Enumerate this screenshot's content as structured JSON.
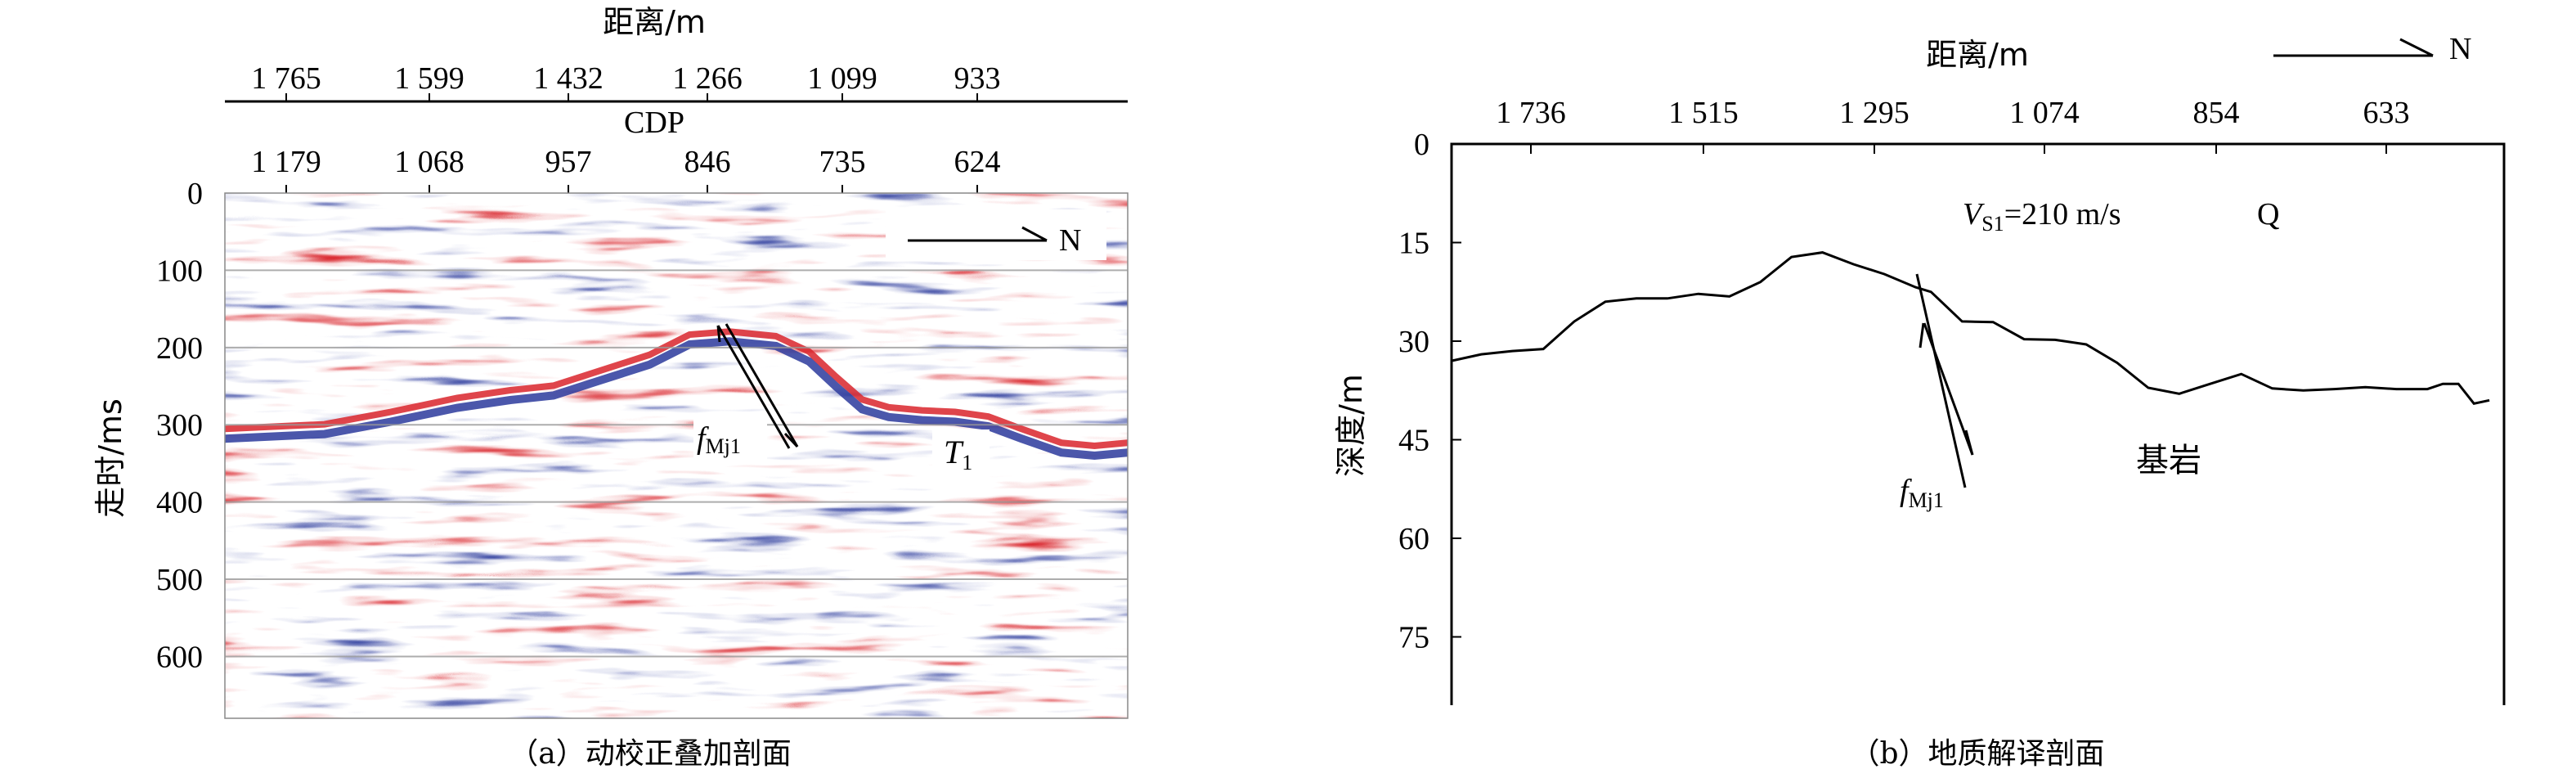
{
  "chart_data": [
    {
      "type": "heatmap",
      "panel": "a",
      "caption": "（a）动校正叠加剖面",
      "top_axis": {
        "label": "距离/m",
        "ticks": [
          "1 765",
          "1 599",
          "1 432",
          "1 266",
          "1 099",
          "933"
        ]
      },
      "second_axis": {
        "label": "CDP",
        "ticks": [
          "1 179",
          "1 068",
          "957",
          "846",
          "735",
          "624"
        ]
      },
      "y_axis": {
        "label": "走时/ms",
        "ticks": [
          "0",
          "100",
          "200",
          "300",
          "400",
          "500",
          "600"
        ],
        "range": [
          0,
          680
        ]
      },
      "north_label": "N",
      "annotations": {
        "fault_main": "f",
        "fault_sub": "Mj1",
        "horizon_main": "T",
        "horizon_sub": "1"
      },
      "colors": {
        "positive": "#d9242b",
        "negative": "#2b3a9c",
        "background": "#ffffff"
      },
      "horizon_t1_ms": [
        [
          0,
          318
        ],
        [
          150,
          312
        ],
        [
          250,
          296
        ],
        [
          350,
          278
        ],
        [
          430,
          268
        ],
        [
          495,
          262
        ],
        [
          560,
          244
        ],
        [
          640,
          222
        ],
        [
          700,
          196
        ],
        [
          760,
          192
        ],
        [
          830,
          198
        ],
        [
          880,
          218
        ],
        [
          920,
          250
        ],
        [
          960,
          280
        ],
        [
          1000,
          290
        ],
        [
          1050,
          294
        ],
        [
          1100,
          296
        ],
        [
          1150,
          302
        ],
        [
          1200,
          318
        ],
        [
          1260,
          336
        ],
        [
          1310,
          340
        ],
        [
          1360,
          336
        ]
      ]
    },
    {
      "type": "line",
      "panel": "b",
      "caption": "（b）地质解译剖面",
      "top_axis": {
        "label": "距离/m",
        "ticks": [
          "1 736",
          "1 515",
          "1 295",
          "1 074",
          "854",
          "633"
        ]
      },
      "y_axis": {
        "label": "深度/m",
        "ticks": [
          "0",
          "15",
          "30",
          "45",
          "60",
          "75"
        ],
        "range": [
          0,
          83
        ]
      },
      "north_label": "N",
      "annotations": {
        "velocity_main": "V",
        "velocity_sub": "S1",
        "velocity_value": "=210 m/s",
        "upper_layer": "Q",
        "bedrock": "基岩",
        "fault_main": "f",
        "fault_sub": "Mj1"
      },
      "bedrock_surface": {
        "x_m": [
          1960,
          1900,
          1850,
          1800,
          1760,
          1720,
          1680,
          1640,
          1600,
          1560,
          1520,
          1480,
          1440,
          1400,
          1360,
          1320,
          1280,
          1240,
          1220,
          1180,
          1140,
          1100,
          1060,
          1020,
          980,
          940,
          900,
          860,
          820,
          780,
          740,
          700,
          660,
          620,
          580,
          560,
          540,
          520,
          500
        ],
        "depth_m": [
          32.5,
          33.2,
          33,
          32,
          31.5,
          31.2,
          27,
          24,
          23.5,
          23.5,
          22.8,
          23.2,
          21,
          17.2,
          16.5,
          18.3,
          19.8,
          21.8,
          22.5,
          27,
          27.1,
          29.7,
          29.8,
          30.5,
          33.3,
          37.1,
          38,
          36.5,
          35,
          37.2,
          37.5,
          37.3,
          37,
          37.3,
          37.3,
          36.5,
          36.5,
          39.5,
          39
        ]
      }
    }
  ]
}
